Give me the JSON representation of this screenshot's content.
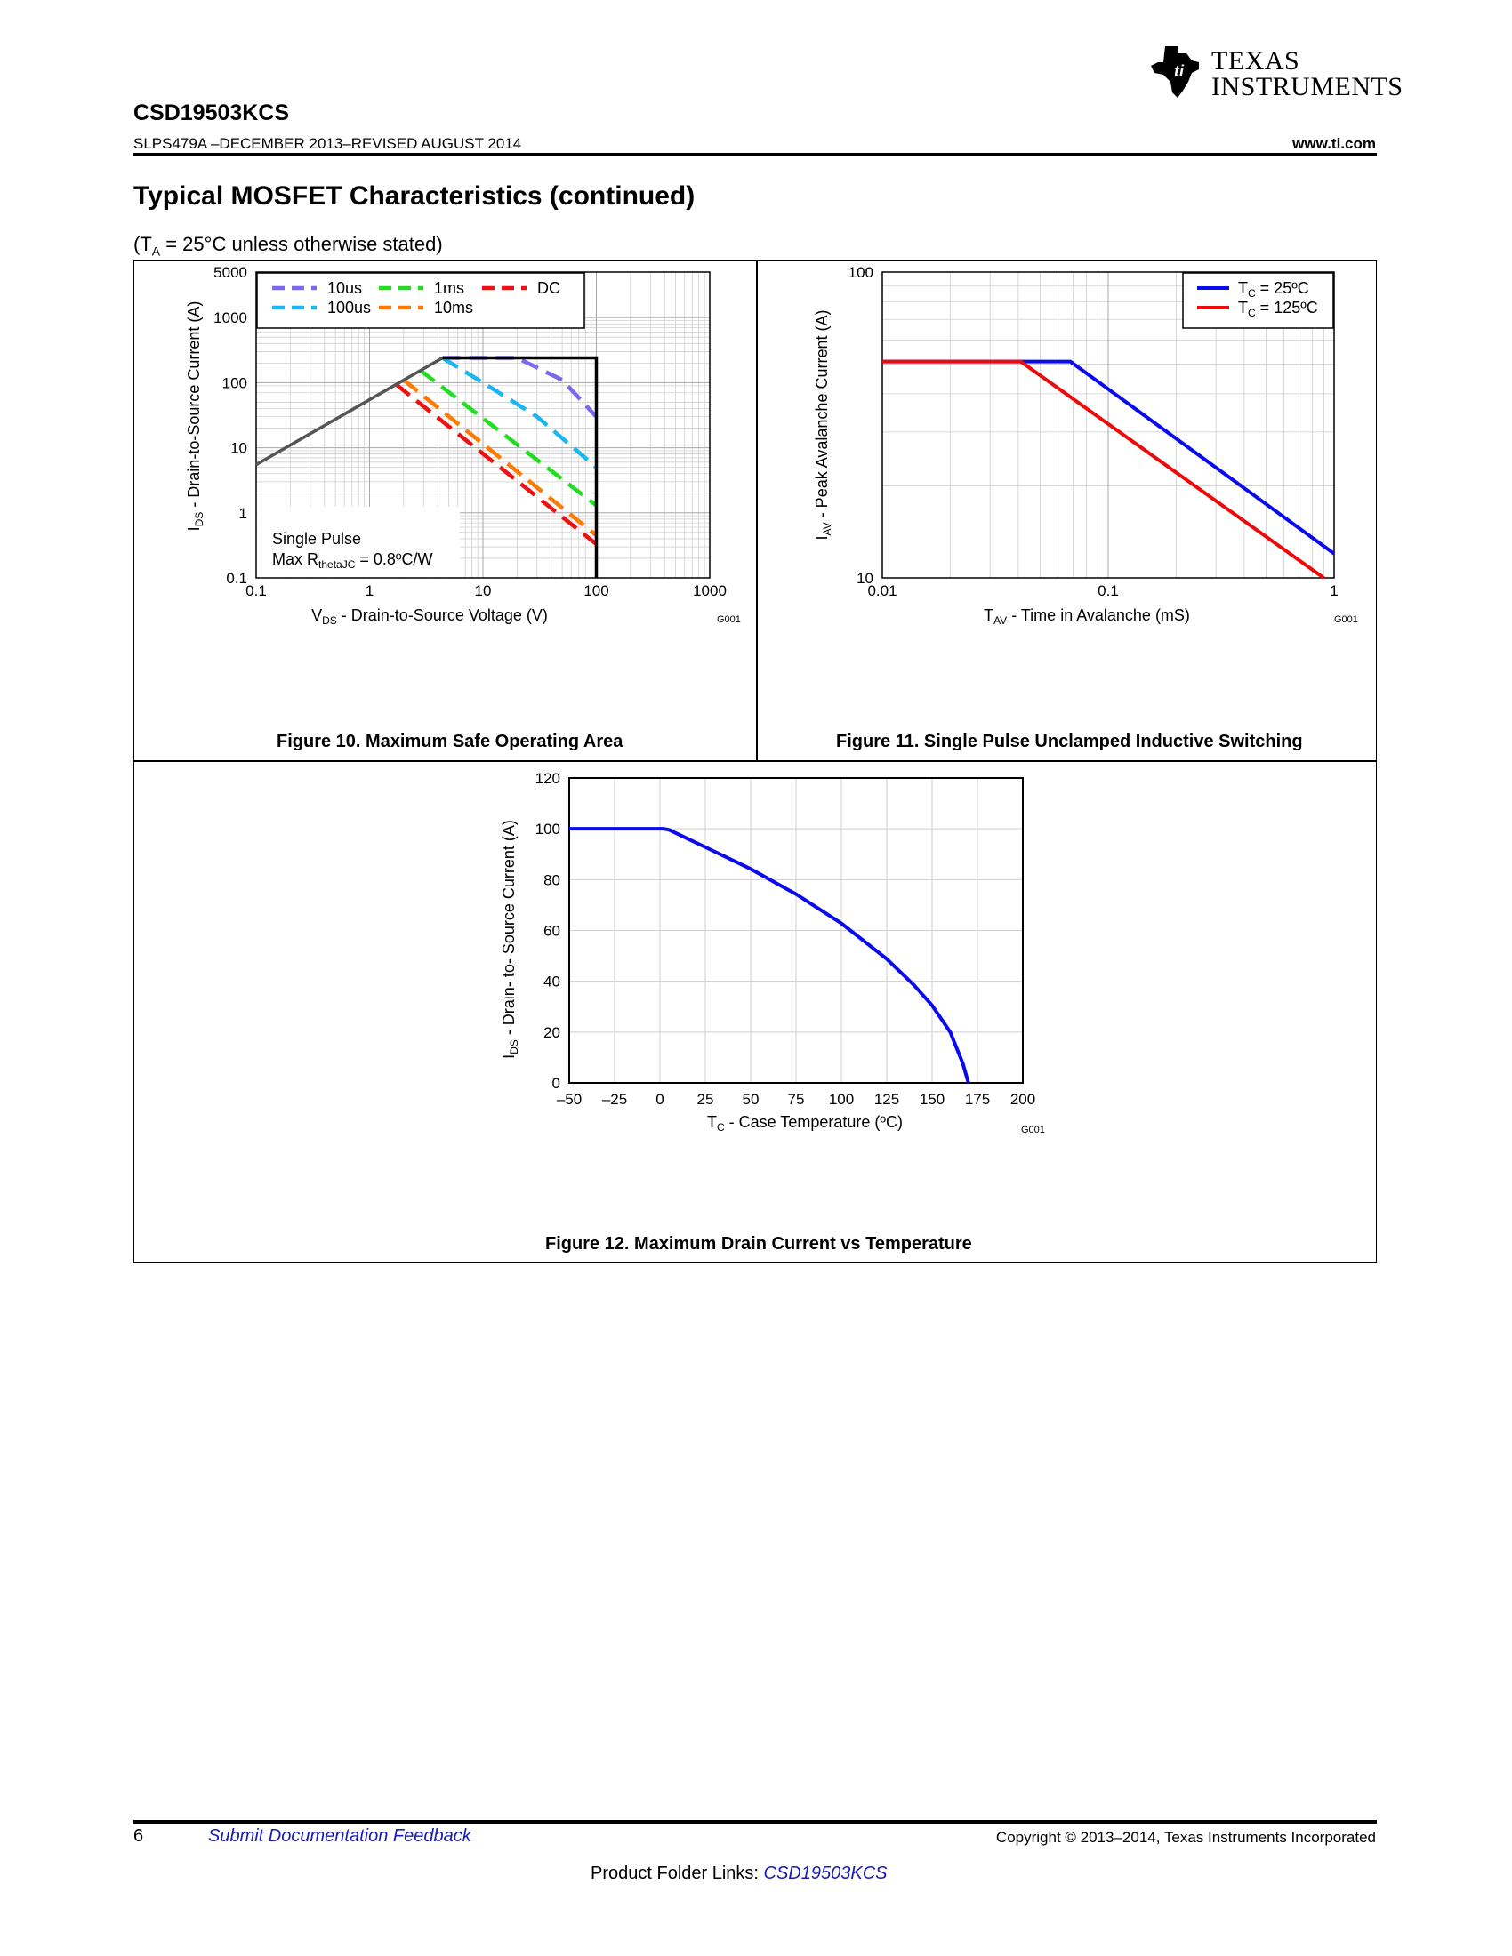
{
  "header": {
    "part_number": "CSD19503KCS",
    "doc_id": "SLPS479A –DECEMBER 2013–REVISED AUGUST 2014",
    "website": "www.ti.com",
    "logo_line1": "TEXAS",
    "logo_line2": "INSTRUMENTS"
  },
  "section": {
    "title": "Typical MOSFET Characteristics (continued)",
    "condition_prefix": "(T",
    "condition_sub": "A",
    "condition_suffix": " = 25°C unless otherwise stated)"
  },
  "figures": {
    "fig10_caption": "Figure 10. Maximum Safe Operating Area",
    "fig11_caption": "Figure 11. Single Pulse Unclamped Inductive Switching",
    "fig12_caption": "Figure 12. Maximum Drain Current vs Temperature"
  },
  "chart_data": [
    {
      "type": "line",
      "title": "",
      "xlabel": "VDS - Drain-to-Source Voltage (V)",
      "ylabel": "IDS - Drain-to-Source Current (A)",
      "x_scale": "log",
      "y_scale": "log",
      "xlim": [
        0.1,
        1000
      ],
      "ylim": [
        0.1,
        5000
      ],
      "x_ticks": [
        "0.1",
        "1",
        "10",
        "100",
        "1000"
      ],
      "y_ticks": [
        "0.1",
        "1",
        "10",
        "100",
        "1000",
        "5000"
      ],
      "tag": "G001",
      "annotation_line1": "Single Pulse",
      "annotation_line2_prefix": "Max R",
      "annotation_line2_sub": "thetaJC",
      "annotation_line2_suffix": " = 0.8ºC/W",
      "legend_position": "top",
      "rds_limit": {
        "color": "#555555",
        "points": [
          [
            0.1,
            5.5
          ],
          [
            4.4,
            240
          ]
        ]
      },
      "boundary": {
        "color": "#000000",
        "points": [
          [
            4.4,
            240
          ],
          [
            100,
            240
          ],
          [
            100,
            0.1
          ]
        ]
      },
      "series": [
        {
          "name": "10us",
          "color": "#7b68ee",
          "points": [
            [
              4.4,
              240
            ],
            [
              20,
              240
            ],
            [
              50,
              110
            ],
            [
              100,
              30
            ]
          ]
        },
        {
          "name": "100us",
          "color": "#1ab6f0",
          "points": [
            [
              4.4,
              240
            ],
            [
              10,
              100
            ],
            [
              30,
              30
            ],
            [
              100,
              5
            ]
          ]
        },
        {
          "name": "1ms",
          "color": "#22dd22",
          "points": [
            [
              2.8,
              155
            ],
            [
              100,
              1.3
            ]
          ]
        },
        {
          "name": "10ms",
          "color": "#ff7a00",
          "points": [
            [
              2.0,
              110
            ],
            [
              100,
              0.45
            ]
          ]
        },
        {
          "name": "DC",
          "color": "#ee1111",
          "points": [
            [
              1.7,
              95
            ],
            [
              100,
              0.33
            ]
          ]
        }
      ]
    },
    {
      "type": "line",
      "title": "",
      "xlabel": "TAV - Time in Avalanche (mS)",
      "ylabel": "IAV - Peak Avalanche Current (A)",
      "x_scale": "log",
      "y_scale": "log",
      "xlim": [
        0.01,
        1
      ],
      "ylim": [
        10,
        100
      ],
      "x_ticks": [
        "0.01",
        "0.1",
        "1"
      ],
      "y_ticks": [
        "10",
        "100"
      ],
      "tag": "G001",
      "legend_position": "top-right",
      "series": [
        {
          "name": "TC = 25ºC",
          "name_prefix": "T",
          "name_sub": "C",
          "name_suffix": " = 25ºC",
          "color": "#0a0aee",
          "points": [
            [
              0.01,
              51
            ],
            [
              0.068,
              51
            ],
            [
              1,
              12
            ]
          ]
        },
        {
          "name": "TC = 125ºC",
          "name_prefix": "T",
          "name_sub": "C",
          "name_suffix": " = 125ºC",
          "color": "#ee0a0a",
          "points": [
            [
              0.01,
              51
            ],
            [
              0.041,
              51
            ],
            [
              0.9,
              10
            ]
          ]
        }
      ]
    },
    {
      "type": "line",
      "title": "",
      "xlabel": "TC - Case Temperature (ºC)",
      "ylabel": "IDS - Drain- to- Source Current (A)",
      "xlim": [
        -50,
        200
      ],
      "ylim": [
        0,
        120
      ],
      "x_ticks": [
        "–50",
        "–25",
        "0",
        "25",
        "50",
        "75",
        "100",
        "125",
        "150",
        "175",
        "200"
      ],
      "y_ticks": [
        "0",
        "20",
        "40",
        "60",
        "80",
        "100",
        "120"
      ],
      "tag": "G001",
      "series": [
        {
          "name": "",
          "color": "#0a0aee",
          "points": [
            [
              -50,
              100
            ],
            [
              2,
              100
            ],
            [
              5,
              99.6
            ],
            [
              25,
              92.8
            ],
            [
              50,
              84.2
            ],
            [
              75,
              74.3
            ],
            [
              100,
              62.8
            ],
            [
              125,
              48.8
            ],
            [
              140,
              38.5
            ],
            [
              150,
              30.5
            ],
            [
              160,
              20
            ],
            [
              167,
              7.5
            ],
            [
              170,
              0
            ],
            [
              172,
              0
            ],
            [
              175,
              0
            ]
          ]
        }
      ]
    }
  ],
  "footer": {
    "page_number": "6",
    "feedback_link": "Submit Documentation Feedback",
    "copyright": "Copyright © 2013–2014, Texas Instruments Incorporated",
    "folder_label": "Product Folder Links: ",
    "folder_link": "CSD19503KCS"
  }
}
